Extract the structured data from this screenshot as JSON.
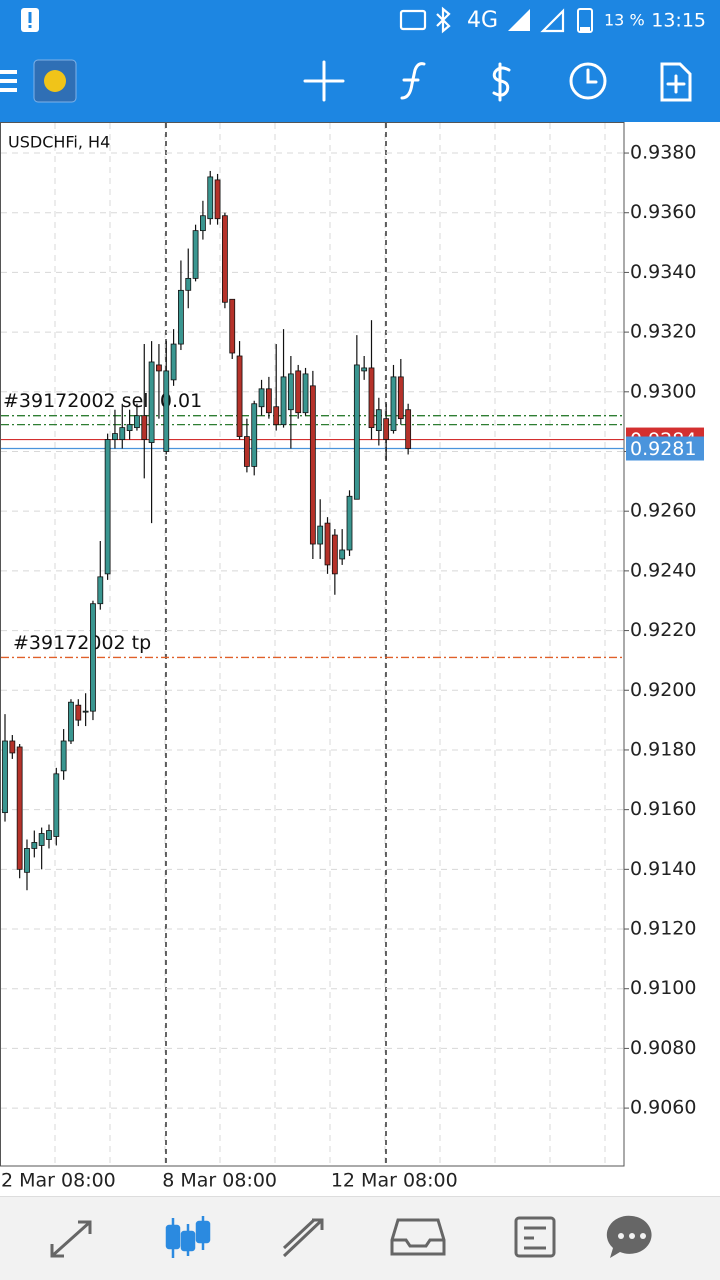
{
  "status_bar": {
    "network": "4G",
    "battery": "13 %",
    "time": "13:15"
  },
  "chart_data": {
    "type": "candlestick",
    "title": "USDCHFi, H4",
    "categories": [
      "2 Mar 08:00",
      null,
      null,
      null,
      null,
      null,
      null,
      null,
      null,
      null,
      null,
      null,
      null,
      null,
      null,
      null,
      null,
      null,
      null,
      null,
      null,
      null,
      "8 Mar 08:00",
      null,
      null,
      null,
      null,
      null,
      null,
      null,
      null,
      null,
      null,
      null,
      null,
      null,
      null,
      null,
      null,
      null,
      null,
      null,
      null,
      null,
      null,
      "12 Mar 08:00",
      null,
      null,
      null,
      null,
      null,
      null,
      null,
      null,
      null,
      null
    ],
    "open": [
      0.9159,
      0.9183,
      0.9181,
      0.9139,
      0.9147,
      0.9148,
      0.915,
      0.9151,
      0.9173,
      0.9183,
      0.9195,
      0.9193,
      0.9193,
      0.9229,
      0.9239,
      0.9284,
      0.9284,
      0.9287,
      0.9288,
      0.9292,
      0.9283,
      0.9309,
      0.928,
      0.9304,
      0.9316,
      0.9334,
      0.9338,
      0.9354,
      0.9358,
      0.9371,
      0.9359,
      0.9331,
      0.9312,
      0.9285,
      0.9275,
      0.9295,
      0.9301,
      0.9295,
      0.9289,
      0.9294,
      0.9307,
      0.9293,
      0.9302,
      0.9249,
      0.9256,
      0.9252,
      0.9244,
      0.9247,
      0.9264,
      0.9307,
      0.9308,
      0.9287,
      0.9291,
      0.9287,
      0.9305,
      0.9294
    ],
    "high": [
      0.9192,
      0.9185,
      0.9182,
      0.915,
      0.9153,
      0.9154,
      0.9155,
      0.9174,
      0.9187,
      0.9197,
      0.9197,
      0.9199,
      0.923,
      0.925,
      0.9286,
      0.9294,
      0.9296,
      0.9294,
      0.9296,
      0.9316,
      0.9317,
      0.9316,
      0.9317,
      0.9321,
      0.9344,
      0.9348,
      0.9356,
      0.9364,
      0.9374,
      0.9373,
      0.936,
      0.9331,
      0.9317,
      0.9291,
      0.9297,
      0.9304,
      0.9305,
      0.9316,
      0.9321,
      0.9312,
      0.9309,
      0.9308,
      0.9307,
      0.9264,
      0.9258,
      0.9254,
      0.9254,
      0.9267,
      0.9319,
      0.9312,
      0.9324,
      0.9298,
      0.9296,
      0.9309,
      0.9311,
      0.9296
    ],
    "low": [
      0.9156,
      0.9177,
      0.9137,
      0.9133,
      0.9144,
      0.914,
      0.9147,
      0.9148,
      0.917,
      0.9182,
      0.9188,
      0.9188,
      0.919,
      0.9227,
      0.9237,
      0.9281,
      0.9281,
      0.9284,
      0.9287,
      0.9271,
      0.9256,
      0.9291,
      0.9279,
      0.9302,
      0.9314,
      0.9328,
      0.9337,
      0.9351,
      0.9356,
      0.9356,
      0.9328,
      0.9311,
      0.9284,
      0.9273,
      0.9272,
      0.9292,
      0.9291,
      0.9287,
      0.9288,
      0.9281,
      0.9291,
      0.9292,
      0.9244,
      0.9244,
      0.9239,
      0.9232,
      0.9242,
      0.9245,
      0.9264,
      0.9304,
      0.9284,
      0.9282,
      0.9277,
      0.9286,
      0.9289,
      0.9279
    ],
    "close": [
      0.9183,
      0.9179,
      0.914,
      0.9147,
      0.9149,
      0.9152,
      0.9153,
      0.9172,
      0.9183,
      0.9196,
      0.919,
      0.9193,
      0.9229,
      0.9238,
      0.9284,
      0.9286,
      0.9288,
      0.9289,
      0.9292,
      0.9284,
      0.931,
      0.9307,
      0.9307,
      0.9316,
      0.9334,
      0.9338,
      0.9354,
      0.9359,
      0.9372,
      0.9358,
      0.933,
      0.9313,
      0.9285,
      0.9275,
      0.9296,
      0.9301,
      0.9293,
      0.9289,
      0.9305,
      0.9306,
      0.9293,
      0.9306,
      0.9249,
      0.9255,
      0.9242,
      0.9239,
      0.9247,
      0.9265,
      0.9309,
      0.9308,
      0.9288,
      0.9294,
      0.9284,
      0.9305,
      0.9291,
      0.9281
    ],
    "up_color": "#3a9690",
    "down_color": "#b5322a",
    "ylim": [
      0.90406,
      0.93904
    ],
    "yticks": [
      {
        "value": 0.938,
        "label": "0.9380"
      },
      {
        "value": 0.936,
        "label": "0.9360"
      },
      {
        "value": 0.934,
        "label": "0.9340"
      },
      {
        "value": 0.932,
        "label": "0.9320"
      },
      {
        "value": 0.93,
        "label": "0.9300"
      },
      {
        "value": 0.928,
        "label": "0.9280"
      },
      {
        "value": 0.926,
        "label": "0.9260"
      },
      {
        "value": 0.924,
        "label": "0.9240"
      },
      {
        "value": 0.922,
        "label": "0.9220"
      },
      {
        "value": 0.92,
        "label": "0.9200"
      },
      {
        "value": 0.918,
        "label": "0.9180"
      },
      {
        "value": 0.916,
        "label": "0.9160"
      },
      {
        "value": 0.914,
        "label": "0.9140"
      },
      {
        "value": 0.912,
        "label": "0.9120"
      },
      {
        "value": 0.91,
        "label": "0.9100"
      },
      {
        "value": 0.908,
        "label": "0.9080"
      },
      {
        "value": 0.906,
        "label": "0.9060"
      }
    ],
    "grid": true,
    "trade_levels": [
      {
        "label": "#39172002 sell 0.01",
        "value": 0.9292,
        "color": "#2e7d32"
      },
      {
        "value": 0.9289,
        "color": "#2e7d32"
      },
      {
        "label": "#39172002 tp",
        "value": 0.9211,
        "color": "#e0602a"
      }
    ],
    "ask": 0.9284,
    "ask_color": "#d32f2f",
    "bid": 0.9281,
    "bid_color": "#4a94dc"
  }
}
